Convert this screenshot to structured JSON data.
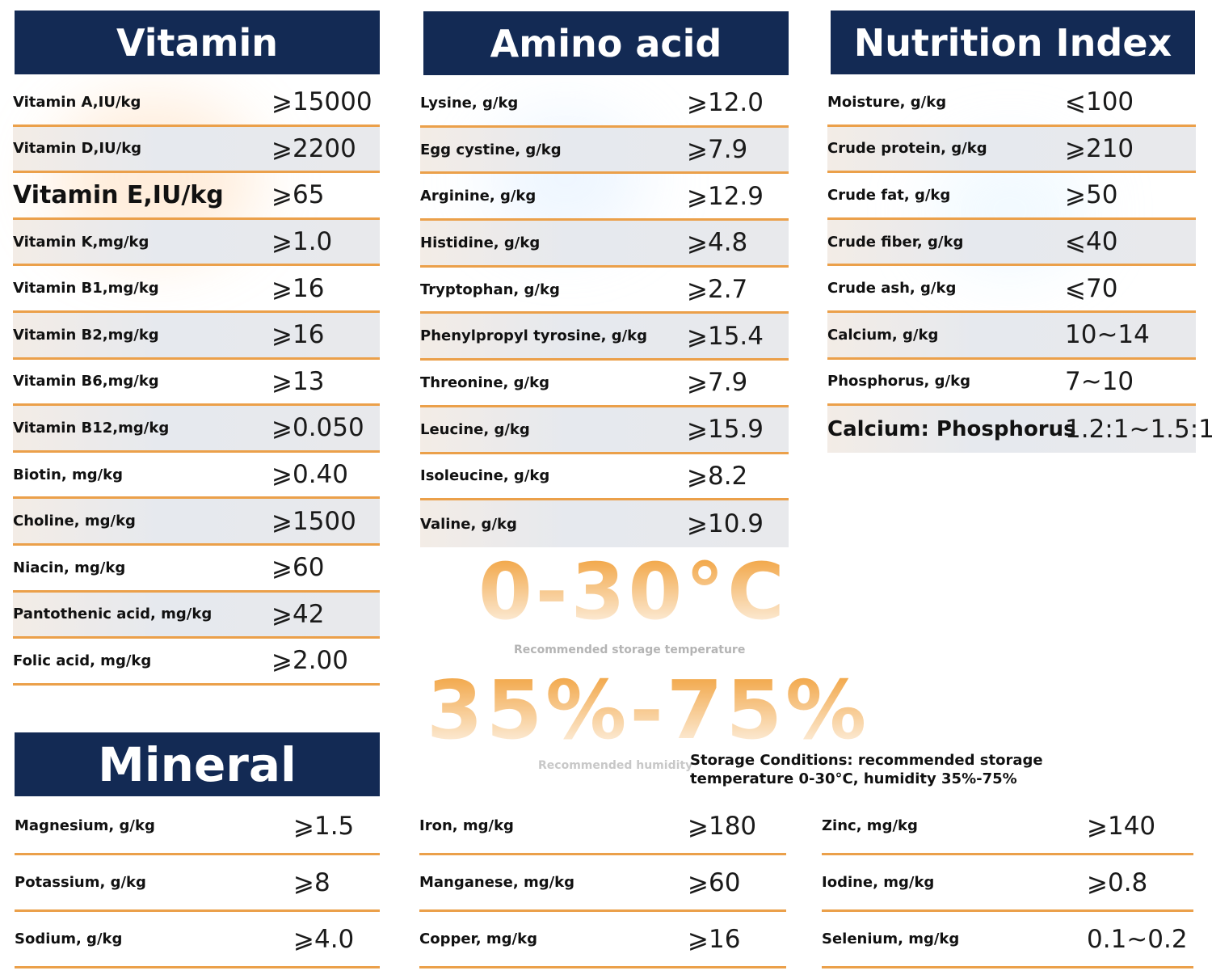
{
  "vitamin": {
    "title": "Vitamin",
    "rows": [
      {
        "label": "Vitamin A,IU/kg",
        "value": "⩾15000"
      },
      {
        "label": "Vitamin D,IU/kg",
        "value": "⩾2200"
      },
      {
        "label": "Vitamin E,IU/kg",
        "value": "⩾65"
      },
      {
        "label": "Vitamin K,mg/kg",
        "value": "⩾1.0"
      },
      {
        "label": "Vitamin B1,mg/kg",
        "value": "⩾16"
      },
      {
        "label": "Vitamin B2,mg/kg",
        "value": "⩾16"
      },
      {
        "label": "Vitamin B6,mg/kg",
        "value": "⩾13"
      },
      {
        "label": "Vitamin B12,mg/kg",
        "value": "⩾0.050"
      },
      {
        "label": "Biotin, mg/kg",
        "value": "⩾0.40"
      },
      {
        "label": "Choline, mg/kg",
        "value": "⩾1500"
      },
      {
        "label": "Niacin, mg/kg",
        "value": "⩾60"
      },
      {
        "label": "Pantothenic acid, mg/kg",
        "value": "⩾42"
      },
      {
        "label": "Folic acid, mg/kg",
        "value": "⩾2.00"
      }
    ]
  },
  "amino_acid": {
    "title": "Amino acid",
    "rows": [
      {
        "label": "Lysine, g/kg",
        "value": "⩾12.0"
      },
      {
        "label": "Egg cystine, g/kg",
        "value": "⩾7.9"
      },
      {
        "label": "Arginine, g/kg",
        "value": "⩾12.9"
      },
      {
        "label": "Histidine, g/kg",
        "value": "⩾4.8"
      },
      {
        "label": "Tryptophan, g/kg",
        "value": "⩾2.7"
      },
      {
        "label": "Phenylpropyl tyrosine, g/kg",
        "value": "⩾15.4"
      },
      {
        "label": "Threonine, g/kg",
        "value": "⩾7.9"
      },
      {
        "label": "Leucine, g/kg",
        "value": "⩾15.9"
      },
      {
        "label": "Isoleucine, g/kg",
        "value": "⩾8.2"
      },
      {
        "label": "Valine, g/kg",
        "value": "⩾10.9"
      }
    ]
  },
  "nutrition_index": {
    "title": "Nutrition Index",
    "rows": [
      {
        "label": "Moisture, g/kg",
        "value": "⩽100"
      },
      {
        "label": "Crude protein, g/kg",
        "value": "⩾210"
      },
      {
        "label": "Crude fat, g/kg",
        "value": "⩾50"
      },
      {
        "label": "Crude fiber, g/kg",
        "value": "⩽40"
      },
      {
        "label": "Crude ash, g/kg",
        "value": "⩽70"
      },
      {
        "label": "Calcium, g/kg",
        "value": "10~14"
      },
      {
        "label": "Phosphorus, g/kg",
        "value": "7~10"
      },
      {
        "label": "Calcium: Phosphorus",
        "value": "1.2:1~1.5:1"
      }
    ]
  },
  "mineral": {
    "title": "Mineral",
    "col1": [
      {
        "label": "Magnesium, g/kg",
        "value": "⩾1.5"
      },
      {
        "label": "Potassium, g/kg",
        "value": "⩾8"
      },
      {
        "label": "Sodium, g/kg",
        "value": "⩾4.0"
      }
    ],
    "col2": [
      {
        "label": "Iron, mg/kg",
        "value": "⩾180"
      },
      {
        "label": "Manganese, mg/kg",
        "value": "⩾60"
      },
      {
        "label": "Copper, mg/kg",
        "value": "⩾16"
      }
    ],
    "col3": [
      {
        "label": "Zinc, mg/kg",
        "value": "⩾140"
      },
      {
        "label": "Iodine, mg/kg",
        "value": "⩾0.8"
      },
      {
        "label": "Selenium, mg/kg",
        "value": "0.1~0.2"
      }
    ]
  },
  "storage": {
    "temperature": "0-30°C",
    "temperature_caption": "Recommended storage temperature",
    "humidity": "35%-75%",
    "humidity_caption": "Recommended humidity",
    "note": "Storage Conditions: recommended storage temperature 0-30°C, humidity 35%-75%"
  },
  "colors": {
    "header": "#132a54",
    "rule": "#eba04a",
    "accent": "#f09a2e"
  }
}
